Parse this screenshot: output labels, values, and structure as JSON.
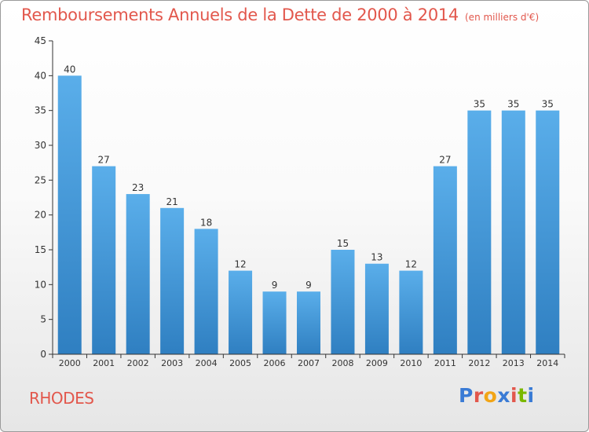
{
  "chart_data": {
    "type": "bar",
    "title": "Remboursements Annuels de la Dette de 2000 à 2014",
    "subtitle": "(en milliers d'€)",
    "categories": [
      "2000",
      "2001",
      "2002",
      "2003",
      "2004",
      "2005",
      "2006",
      "2007",
      "2008",
      "2009",
      "2010",
      "2011",
      "2012",
      "2013",
      "2014"
    ],
    "values": [
      40,
      27,
      23,
      21,
      18,
      12,
      9,
      9,
      15,
      13,
      12,
      27,
      35,
      35,
      35
    ],
    "yticks": [
      0,
      5,
      10,
      15,
      20,
      25,
      30,
      35,
      40,
      45
    ],
    "ylim": [
      0,
      45
    ],
    "xlabel": "",
    "ylabel": "",
    "grid": false,
    "bar_color": "#3a8fd6"
  },
  "footer": {
    "commune": "RHODES",
    "brand_letters": [
      "P",
      "r",
      "o",
      "x",
      "i",
      "t",
      "i"
    ],
    "brand_colors": [
      "#3a7bd5",
      "#e2574c",
      "#f2a516",
      "#3a7bd5",
      "#e2574c",
      "#7ab800",
      "#3a7bd5"
    ]
  },
  "colors": {
    "accent": "#e2574c",
    "axis": "#333333"
  }
}
